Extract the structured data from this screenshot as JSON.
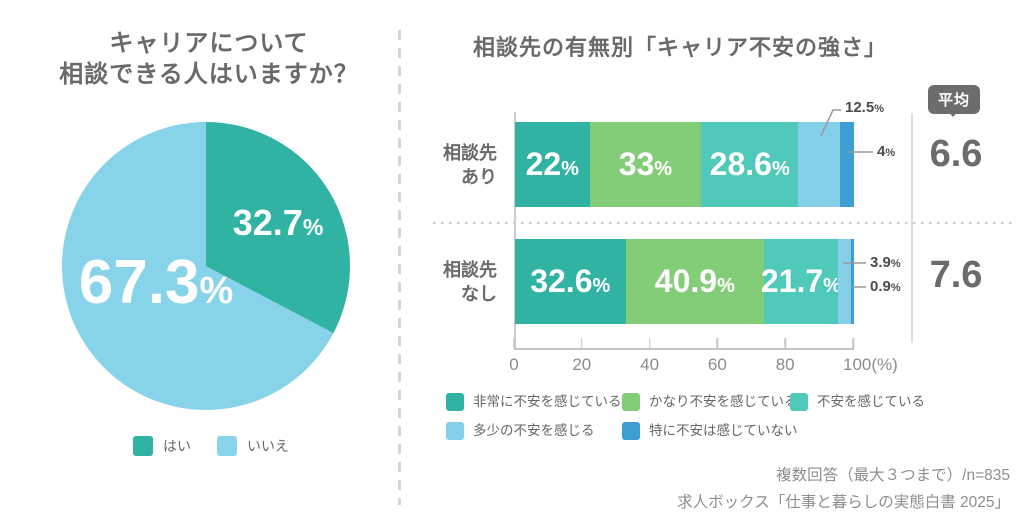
{
  "pie_panel": {
    "title_line1": "キャリアについて",
    "title_line2": "相談できる人はいますか？",
    "slice_labels": [
      {
        "num": "32.7",
        "unit": "%"
      },
      {
        "num": "67.3",
        "unit": "%"
      }
    ],
    "legend": [
      {
        "label": "はい"
      },
      {
        "label": "いいえ"
      }
    ]
  },
  "bar_panel": {
    "title": "相談先の有無別「キャリア不安の強さ」",
    "average_badge": "平均",
    "rows": [
      {
        "category_line1": "相談先",
        "category_line2": "あり",
        "average": "6.6",
        "inside_labels": [
          {
            "num": "22",
            "unit": "%"
          },
          {
            "num": "33",
            "unit": "%"
          },
          {
            "num": "28.6",
            "unit": "%"
          }
        ],
        "callouts": [
          {
            "num": "12.5",
            "unit": "%"
          },
          {
            "num": "4",
            "unit": "%"
          }
        ]
      },
      {
        "category_line1": "相談先",
        "category_line2": "なし",
        "average": "7.6",
        "inside_labels": [
          {
            "num": "32.6",
            "unit": "%"
          },
          {
            "num": "40.9",
            "unit": "%"
          },
          {
            "num": "21.7",
            "unit": "%"
          }
        ],
        "callouts": [
          {
            "num": "3.9",
            "unit": "%"
          },
          {
            "num": "0.9",
            "unit": "%"
          }
        ]
      }
    ],
    "x_ticks": [
      {
        "label": "0"
      },
      {
        "label": "20"
      },
      {
        "label": "40"
      },
      {
        "label": "60"
      },
      {
        "label": "80"
      },
      {
        "label": "100(%)"
      }
    ],
    "legend": [
      {
        "label": "非常に不安を感じている"
      },
      {
        "label": "かなり不安を感じている"
      },
      {
        "label": "不安を感じている"
      },
      {
        "label": "多少の不安を感じる"
      },
      {
        "label": "特に不安は感じていない"
      }
    ]
  },
  "footnotes": {
    "line1": "複数回答（最大３つまで）/n=835",
    "line2": "求人ボックス「仕事と暮らしの実態白書 2025」"
  },
  "chart_data": [
    {
      "type": "pie",
      "title": "キャリアについて相談できる人はいますか？",
      "labels": [
        "はい",
        "いいえ"
      ],
      "values": [
        32.7,
        67.3
      ],
      "colors": [
        "#31b3a3",
        "#87d3e9"
      ],
      "start_angle_deg": 0,
      "direction": "clockwise",
      "legend_position": "bottom"
    },
    {
      "type": "bar",
      "orientation": "horizontal",
      "stacked": true,
      "title": "相談先の有無別「キャリア不安の強さ」",
      "categories": [
        "相談先あり",
        "相談先なし"
      ],
      "series": [
        {
          "name": "非常に不安を感じている",
          "values": [
            22,
            32.6
          ],
          "color": "#31b3a3"
        },
        {
          "name": "かなり不安を感じている",
          "values": [
            33,
            40.9
          ],
          "color": "#84cd78"
        },
        {
          "name": "不安を感じている",
          "values": [
            28.6,
            21.7
          ],
          "color": "#4fc9ba"
        },
        {
          "name": "多少の不安を感じる",
          "values": [
            12.5,
            3.9
          ],
          "color": "#84d0e9"
        },
        {
          "name": "特に不安は感じていない",
          "values": [
            4,
            0.9
          ],
          "color": "#3c9ed2"
        }
      ],
      "averages": {
        "label": "平均",
        "values": [
          6.6,
          7.6
        ]
      },
      "xlim": [
        0,
        100
      ],
      "x_ticks": [
        0,
        20,
        40,
        60,
        80,
        100
      ],
      "xlabel": "(%)",
      "grid": false,
      "legend_position": "bottom"
    }
  ]
}
